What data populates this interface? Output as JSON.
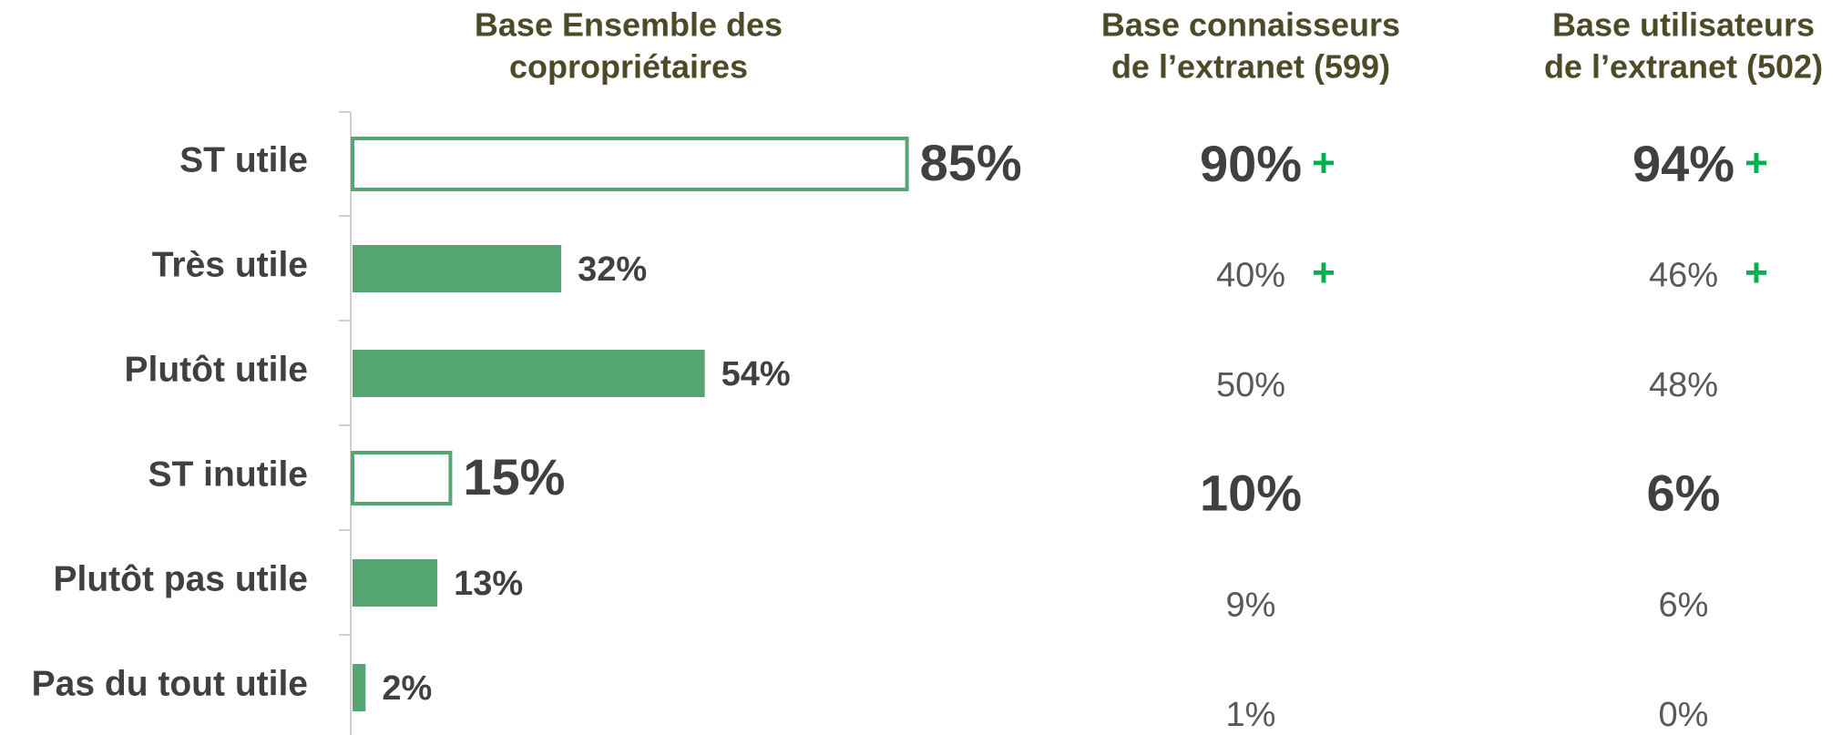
{
  "chart_data": {
    "type": "bar",
    "orientation": "horizontal",
    "title": [
      "Base Ensemble des",
      "copropriétaires"
    ],
    "categories": [
      "ST utile",
      "Très utile",
      "Plutôt utile",
      "ST inutile",
      "Plutôt pas utile",
      "Pas du tout utile"
    ],
    "values": [
      85,
      32,
      54,
      15,
      13,
      2
    ],
    "value_labels": [
      "85%",
      "32%",
      "54%",
      "15%",
      "13%",
      "2%"
    ],
    "subtotal": [
      true,
      false,
      false,
      true,
      false,
      false
    ],
    "color": "#55a673",
    "xlim": [
      0,
      100
    ],
    "columns": [
      {
        "title": [
          "Base connaisseurs",
          "de l’extranet (599)"
        ],
        "values": [
          90,
          40,
          50,
          10,
          9,
          1
        ],
        "value_labels": [
          "90%",
          "40%",
          "50%",
          "10%",
          "9%",
          "1%"
        ],
        "flags": [
          "+",
          "+",
          null,
          null,
          null,
          null
        ]
      },
      {
        "title": [
          "Base utilisateurs",
          "de l’extranet (502)"
        ],
        "values": [
          94,
          46,
          48,
          6,
          6,
          0
        ],
        "value_labels": [
          "94%",
          "46%",
          "48%",
          "6%",
          "6%",
          "0%"
        ],
        "flags": [
          "+",
          "+",
          null,
          null,
          null,
          null
        ]
      }
    ]
  }
}
